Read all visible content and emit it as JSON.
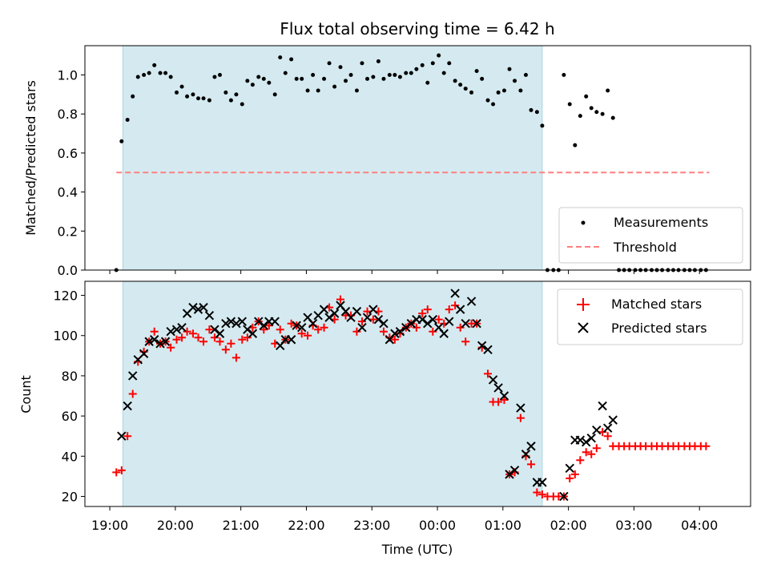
{
  "chart_data": {
    "type": "scatter",
    "title": "Flux total observing time = 6.42 h",
    "xlabel": "Time (UTC)",
    "x_ticks": [
      "19:00",
      "20:00",
      "21:00",
      "22:00",
      "23:00",
      "00:00",
      "01:00",
      "02:00",
      "03:00",
      "04:00"
    ],
    "x_range_hours": [
      18.62,
      28.78
    ],
    "shaded_interval_hours": [
      19.2,
      25.6
    ],
    "shade_color": "#d4eaf0",
    "top_panel": {
      "ylabel": "Matched/Predicted stars",
      "ylim": [
        0,
        1.15
      ],
      "y_ticks": [
        "0.0",
        "0.2",
        "0.4",
        "0.6",
        "0.8",
        "1.0"
      ],
      "legend_position": "lower-right",
      "threshold": {
        "name": "Threshold",
        "value": 0.5,
        "x_range": [
          19.1,
          28.15
        ],
        "color": "#ff7f7f"
      },
      "measurements": {
        "name": "Measurements",
        "color": "#000000",
        "x": [
          19.1,
          19.18,
          19.27,
          19.35,
          19.43,
          19.52,
          19.6,
          19.68,
          19.77,
          19.85,
          19.93,
          20.02,
          20.1,
          20.18,
          20.27,
          20.35,
          20.43,
          20.52,
          20.6,
          20.68,
          20.77,
          20.85,
          20.93,
          21.02,
          21.1,
          21.18,
          21.27,
          21.35,
          21.43,
          21.52,
          21.6,
          21.68,
          21.77,
          21.85,
          21.93,
          22.02,
          22.1,
          22.18,
          22.27,
          22.35,
          22.43,
          22.52,
          22.6,
          22.68,
          22.77,
          22.85,
          22.93,
          23.02,
          23.1,
          23.18,
          23.27,
          23.35,
          23.43,
          23.52,
          23.6,
          23.68,
          23.77,
          23.85,
          23.93,
          24.02,
          24.1,
          24.18,
          24.27,
          24.35,
          24.43,
          24.52,
          24.6,
          24.68,
          24.77,
          24.85,
          24.93,
          25.02,
          25.1,
          25.18,
          25.27,
          25.35,
          25.43,
          25.52,
          25.6,
          25.68,
          25.77,
          25.85,
          25.93,
          26.02,
          26.1,
          26.18,
          26.27,
          26.35,
          26.43,
          26.52,
          26.6,
          26.68,
          26.77,
          26.85,
          26.93,
          27.02,
          27.1,
          27.18,
          27.27,
          27.35,
          27.43,
          27.52,
          27.6,
          27.68,
          27.77,
          27.85,
          27.93,
          28.02,
          28.1
        ],
        "y": [
          0.0,
          0.66,
          0.77,
          0.89,
          0.99,
          1.0,
          1.01,
          1.05,
          1.01,
          1.01,
          0.99,
          0.91,
          0.94,
          0.89,
          0.9,
          0.88,
          0.88,
          0.87,
          0.99,
          1.0,
          0.91,
          0.87,
          0.9,
          0.85,
          0.97,
          0.95,
          0.99,
          0.98,
          0.96,
          0.9,
          1.09,
          1.01,
          1.08,
          0.98,
          0.98,
          0.92,
          1.0,
          0.92,
          0.98,
          1.06,
          0.94,
          1.04,
          0.97,
          1.0,
          0.92,
          1.06,
          0.98,
          0.99,
          1.07,
          0.98,
          1.0,
          1.0,
          0.99,
          1.01,
          1.01,
          1.03,
          1.05,
          0.96,
          1.06,
          1.1,
          1.01,
          1.06,
          0.97,
          0.95,
          0.93,
          0.91,
          1.02,
          0.98,
          0.87,
          0.85,
          0.91,
          0.92,
          1.03,
          0.97,
          0.92,
          1.0,
          0.82,
          0.81,
          0.74,
          0.0,
          0.0,
          0.0,
          1.0,
          0.85,
          0.64,
          0.79,
          0.89,
          0.83,
          0.81,
          0.8,
          0.92,
          0.78,
          0.0,
          0.0,
          0.0,
          0.0,
          0.0,
          0.0,
          0.0,
          0.0,
          0.0,
          0.0,
          0.0,
          0.0,
          0.0,
          0.0,
          0.0,
          0.0,
          0.0
        ]
      }
    },
    "bottom_panel": {
      "ylabel": "Count",
      "ylim": [
        15,
        127
      ],
      "y_ticks": [
        "20",
        "40",
        "60",
        "80",
        "100",
        "120"
      ],
      "legend_position": "upper-right",
      "series": [
        {
          "name": "Matched stars",
          "marker": "plus",
          "color": "#ff0000",
          "x": [
            19.1,
            19.18,
            19.27,
            19.35,
            19.43,
            19.52,
            19.6,
            19.68,
            19.77,
            19.85,
            19.93,
            20.02,
            20.1,
            20.18,
            20.27,
            20.35,
            20.43,
            20.52,
            20.6,
            20.68,
            20.77,
            20.85,
            20.93,
            21.02,
            21.1,
            21.18,
            21.27,
            21.35,
            21.43,
            21.52,
            21.6,
            21.68,
            21.77,
            21.85,
            21.93,
            22.02,
            22.1,
            22.18,
            22.27,
            22.35,
            22.43,
            22.52,
            22.6,
            22.68,
            22.77,
            22.85,
            22.93,
            23.02,
            23.1,
            23.18,
            23.27,
            23.35,
            23.43,
            23.52,
            23.6,
            23.68,
            23.77,
            23.85,
            23.93,
            24.02,
            24.1,
            24.18,
            24.27,
            24.35,
            24.43,
            24.52,
            24.6,
            24.68,
            24.77,
            24.85,
            24.93,
            25.02,
            25.1,
            25.18,
            25.27,
            25.35,
            25.43,
            25.52,
            25.6,
            25.68,
            25.77,
            25.85,
            25.93,
            26.02,
            26.1,
            26.18,
            26.27,
            26.35,
            26.43,
            26.52,
            26.6,
            26.68,
            26.77,
            26.85,
            26.93,
            27.02,
            27.1,
            27.18,
            27.27,
            27.35,
            27.43,
            27.52,
            27.6,
            27.68,
            27.77,
            27.85,
            27.93,
            28.02,
            28.1
          ],
          "y": [
            32,
            33,
            50,
            71,
            87,
            92,
            97,
            102,
            96,
            97,
            94,
            98,
            99,
            102,
            101,
            99,
            97,
            103,
            99,
            97,
            93,
            96,
            89,
            98,
            99,
            104,
            107,
            103,
            105,
            96,
            103,
            98,
            106,
            105,
            101,
            100,
            105,
            103,
            104,
            114,
            108,
            118,
            110,
            110,
            102,
            107,
            112,
            108,
            112,
            102,
            99,
            98,
            101,
            104,
            106,
            104,
            111,
            113,
            102,
            108,
            106,
            113,
            115,
            104,
            97,
            106,
            106,
            94,
            81,
            67,
            67,
            68,
            31,
            32,
            59,
            40,
            36,
            22,
            21,
            20,
            20,
            20,
            20,
            29,
            31,
            38,
            42,
            41,
            44,
            52,
            50,
            45,
            45,
            45,
            45,
            45,
            45,
            45,
            45,
            45,
            45,
            45,
            45,
            45,
            45,
            45,
            45,
            45,
            45
          ]
        },
        {
          "name": "Predicted stars",
          "marker": "x",
          "color": "#000000",
          "x": [
            19.18,
            19.27,
            19.35,
            19.43,
            19.52,
            19.6,
            19.68,
            19.77,
            19.85,
            19.93,
            20.02,
            20.1,
            20.18,
            20.27,
            20.35,
            20.43,
            20.52,
            20.6,
            20.68,
            20.77,
            20.85,
            20.93,
            21.02,
            21.1,
            21.18,
            21.27,
            21.35,
            21.43,
            21.52,
            21.6,
            21.68,
            21.77,
            21.85,
            21.93,
            22.02,
            22.1,
            22.18,
            22.27,
            22.35,
            22.43,
            22.52,
            22.6,
            22.68,
            22.77,
            22.85,
            22.93,
            23.02,
            23.1,
            23.18,
            23.27,
            23.35,
            23.43,
            23.52,
            23.6,
            23.68,
            23.77,
            23.85,
            23.93,
            24.02,
            24.1,
            24.18,
            24.27,
            24.35,
            24.43,
            24.52,
            24.6,
            24.68,
            24.77,
            24.85,
            24.93,
            25.02,
            25.1,
            25.18,
            25.27,
            25.35,
            25.43,
            25.52,
            25.6,
            25.93,
            26.02,
            26.1,
            26.18,
            26.27,
            26.35,
            26.43,
            26.52,
            26.6,
            26.68
          ],
          "y": [
            50,
            65,
            80,
            88,
            91,
            97,
            98,
            96,
            97,
            102,
            103,
            104,
            111,
            114,
            113,
            114,
            110,
            103,
            101,
            106,
            107,
            106,
            107,
            103,
            101,
            107,
            105,
            107,
            107,
            95,
            98,
            98,
            105,
            104,
            109,
            106,
            110,
            113,
            109,
            111,
            115,
            112,
            109,
            112,
            104,
            109,
            113,
            108,
            106,
            98,
            101,
            102,
            104,
            106,
            108,
            108,
            106,
            108,
            104,
            101,
            107,
            121,
            113,
            106,
            117,
            106,
            95,
            93,
            78,
            74,
            70,
            31,
            33,
            64,
            41,
            45,
            27,
            27,
            20,
            34,
            48,
            48,
            47,
            49,
            53,
            65,
            54,
            58
          ]
        }
      ]
    }
  }
}
